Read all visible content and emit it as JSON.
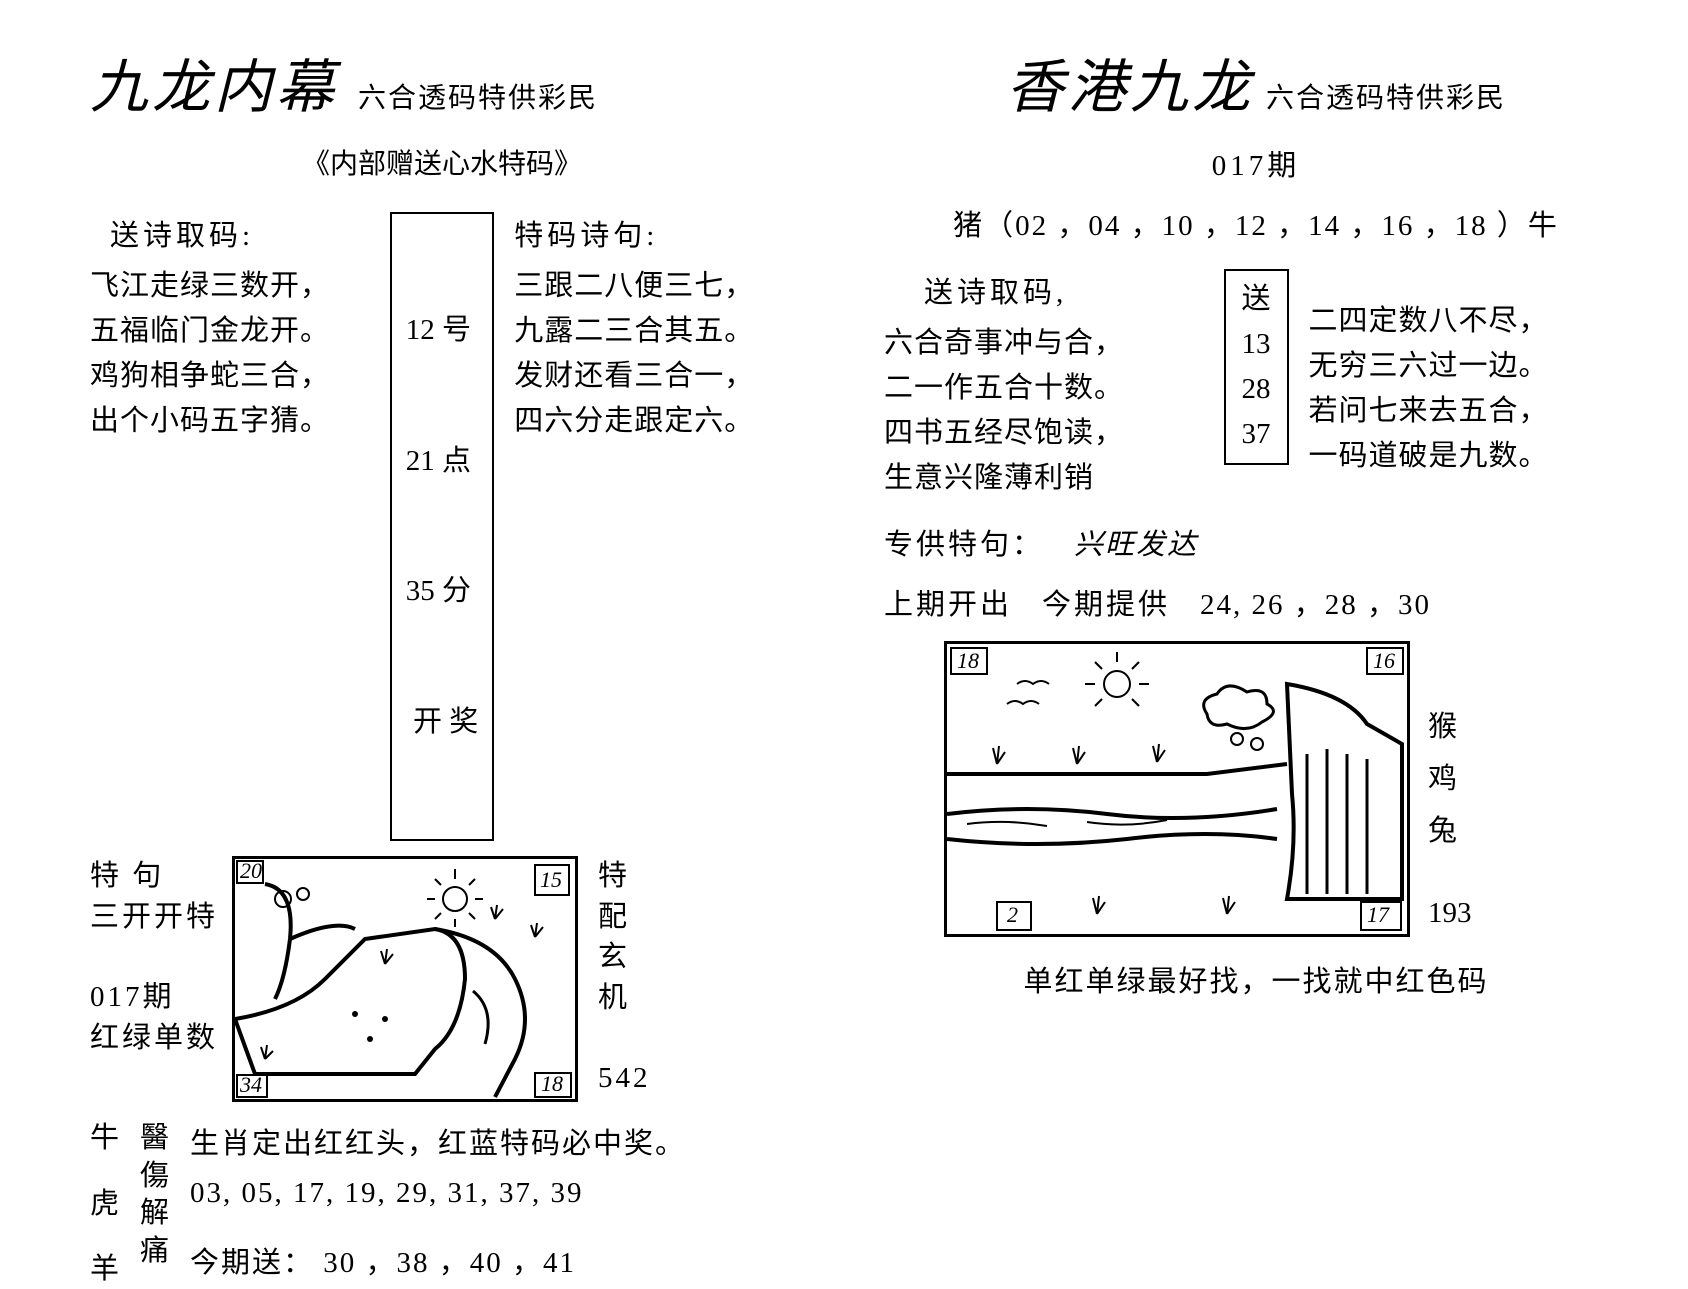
{
  "left": {
    "title": "九龙内幕",
    "subtitle": "六合透码特供彩民",
    "center_sub": "《内部赠送心水特码》",
    "poem_label": "送诗取码:",
    "poem": [
      "飞江走绿三数开，",
      "五福临门金龙开。",
      "鸡狗相争蛇三合，",
      "出个小码五字猜。"
    ],
    "numbox_lines": [
      "12 号",
      "21 点",
      "35 分",
      " 开 奖"
    ],
    "code_poem_label": "特码诗句:",
    "code_poem": [
      "三跟二八便三七，",
      "九露二三合其五。",
      "发财还看三合一，",
      "四六分走跟定六。"
    ],
    "side_left_top1": "特   句",
    "side_left_top2": "三开开特",
    "issue": "017期",
    "side_left_bottom": "红绿单数",
    "side_right_col": "特配玄机",
    "side_right_num": "542",
    "drawing": {
      "corner_tl": "20",
      "corner_tr": "15",
      "corner_bl": "34",
      "corner_br": "18"
    },
    "zodiac_col": [
      "牛",
      "虎",
      "羊"
    ],
    "med_col": "醫傷解痛",
    "body_line1": "生肖定出红红头，红蓝特码必中奖。",
    "body_line2": "03, 05, 17, 19,  29, 31, 37, 39",
    "today_label": "今期送：",
    "today_nums": "30 ，38 ，40 ，41"
  },
  "right": {
    "title": "香港九龙",
    "subtitle": "六合透码特供彩民",
    "issue": "017期",
    "pair_line": "猪（02 ，04 ，10 ，12 ，14 ，16 ，18     ）牛",
    "poem_label": "送诗取码,",
    "poem": [
      "六合奇事冲与合，",
      "二一作五合十数。",
      "四书五经尽饱读，",
      "生意兴隆薄利销"
    ],
    "numbox_lines": [
      "送",
      "13",
      "28",
      "37"
    ],
    "code_poem": [
      "二四定数八不尽，",
      "无穷三六过一边。",
      "若问七来去五合，",
      "一码道破是九数。"
    ],
    "special_label": "专供特句：",
    "special_val": "兴旺发达",
    "last_label": "上期开出",
    "this_label": "今期提供",
    "this_nums": "24,  26 ，28 ，30",
    "drawing": {
      "corner_tl": "18",
      "corner_tr": "16",
      "corner_bl": "2",
      "corner_br": "17"
    },
    "side_right_col": [
      "猴",
      "鸡",
      "兔"
    ],
    "side_right_num": "193",
    "footer": "单红单绿最好找，一找就中红色码"
  }
}
